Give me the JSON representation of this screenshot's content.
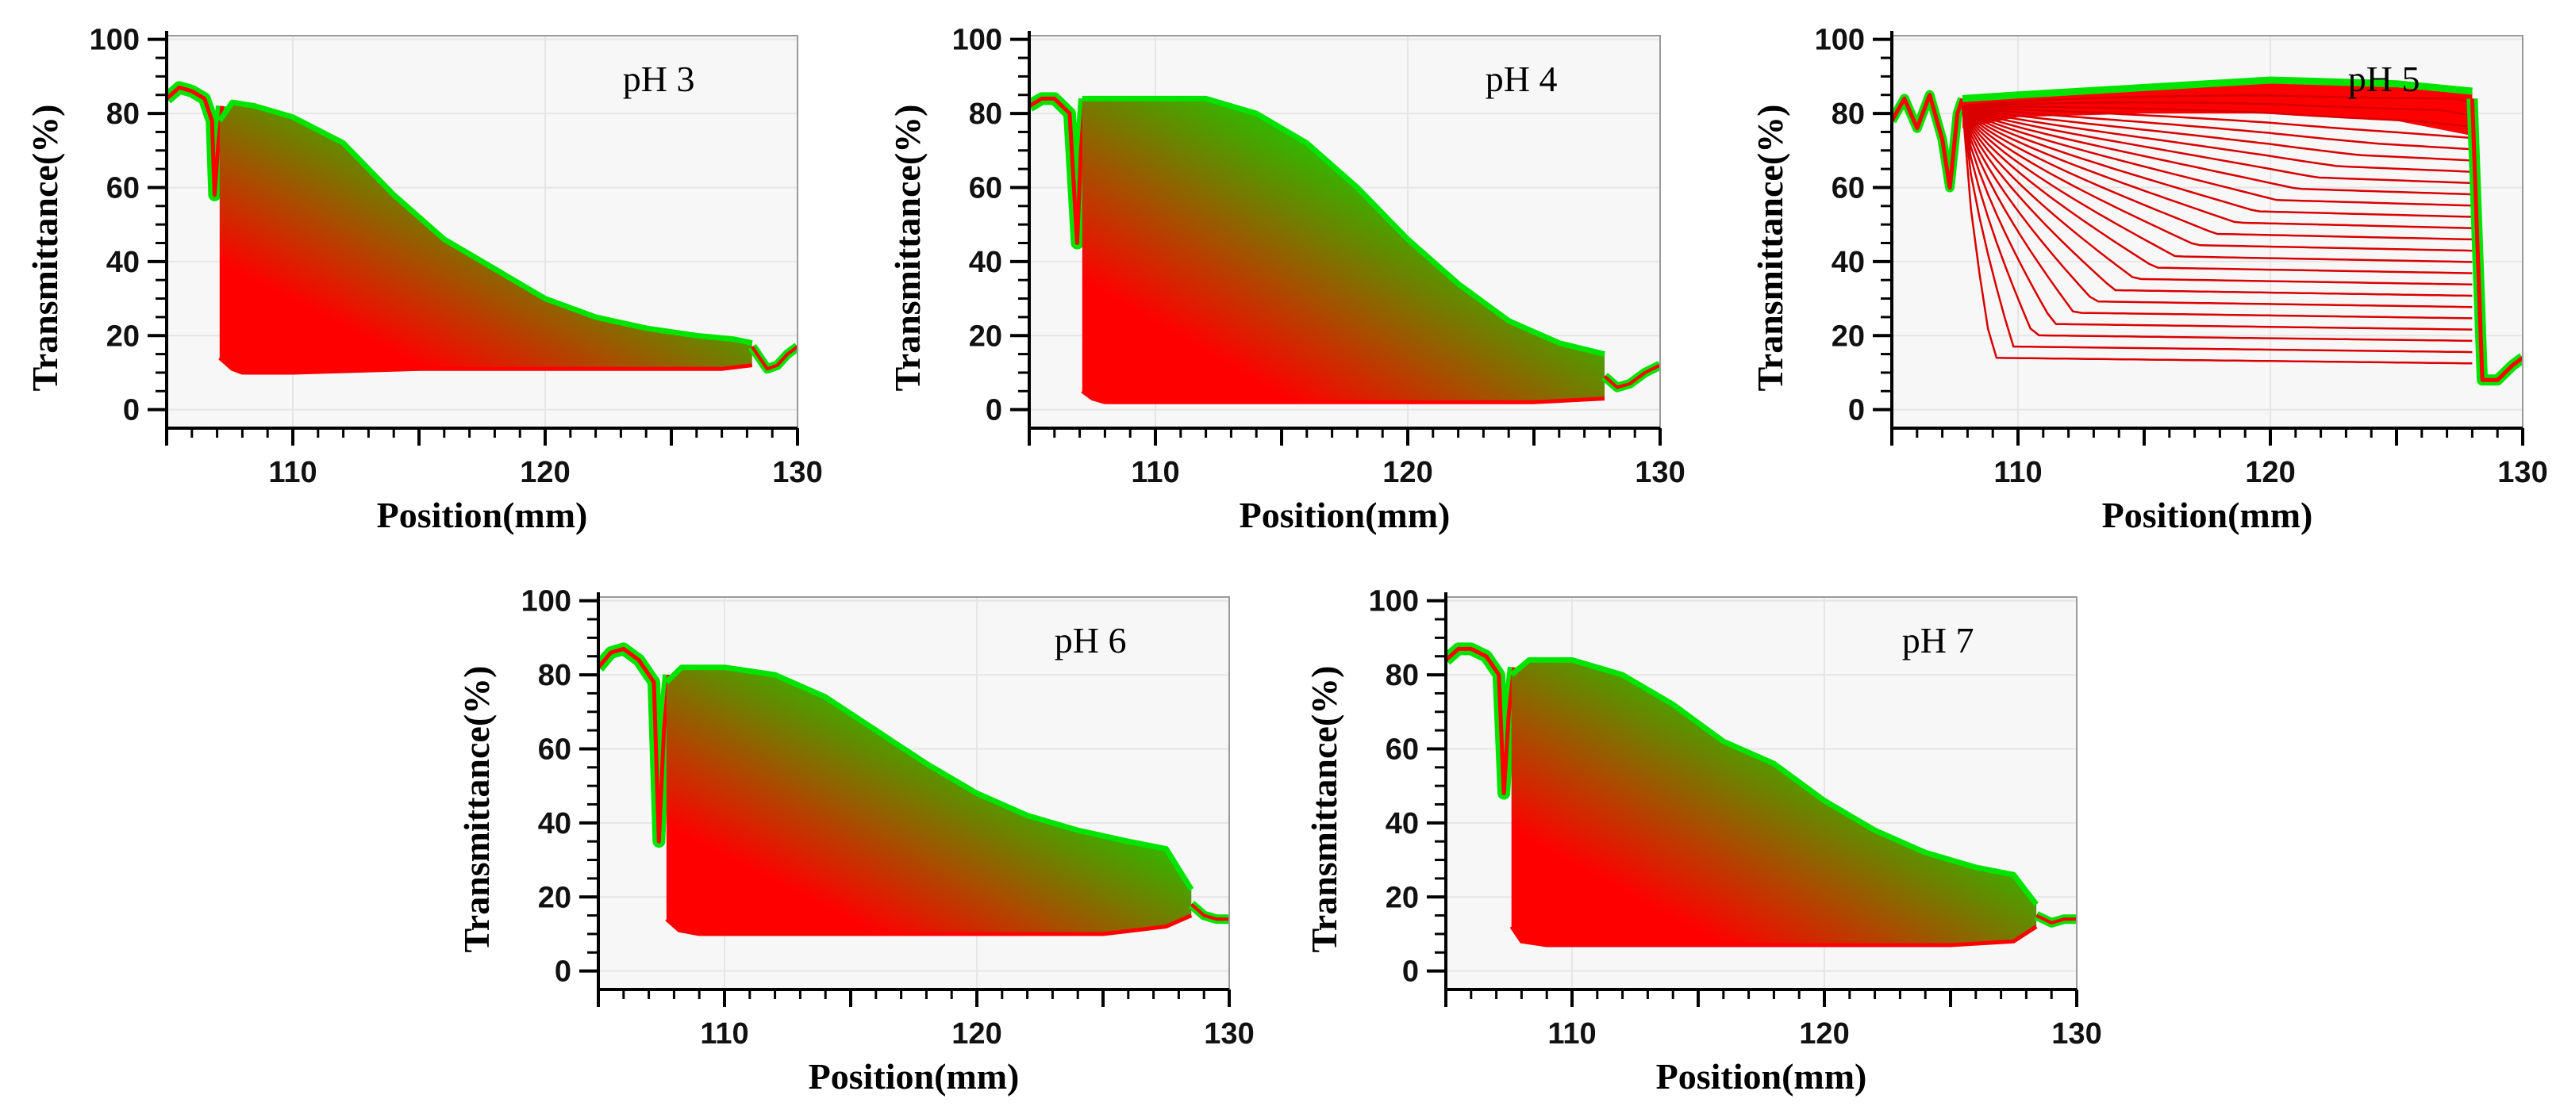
{
  "figure": {
    "background": "#ffffff"
  },
  "colors": {
    "early_profile": "#ff0000",
    "late_profile": "#00e400",
    "plot_background": "#f7f7f7",
    "gridline": "#e6e6e6",
    "axis": "#000000"
  },
  "chart_data": [
    {
      "type": "line",
      "label": "pH 3",
      "style": "filled-profiles",
      "xlabel": "Position(mm)",
      "ylabel": "Transmittance(%)",
      "xlim": [
        105,
        130
      ],
      "ylim": [
        -5,
        101
      ],
      "xticks": [
        110,
        120,
        130
      ],
      "xtick_labels": [
        "110",
        "120",
        "130"
      ],
      "yticks": [
        0,
        20,
        40,
        60,
        80,
        100
      ],
      "ytick_labels": [
        "0",
        "20",
        "40",
        "60",
        "80",
        "100"
      ],
      "meniscus": {
        "x": [
          105,
          105.5,
          106,
          106.5,
          106.8,
          106.9,
          107.05,
          107.2
        ],
        "y": [
          84,
          87,
          86,
          84,
          78,
          58,
          72,
          82
        ]
      },
      "lower_envelope": {
        "x": [
          107.1,
          107.6,
          108,
          110,
          115,
          120,
          125,
          127,
          128.2
        ],
        "y": [
          14,
          11,
          10,
          10,
          11,
          11,
          11,
          11,
          12
        ]
      },
      "upper_envelope": {
        "x": [
          107.1,
          107.6,
          108.5,
          110,
          112,
          114,
          116,
          118,
          120,
          122,
          124,
          126,
          127.5,
          128.2
        ],
        "y": [
          78,
          83,
          82,
          79,
          72,
          58,
          46,
          38,
          30,
          25,
          22,
          20,
          19,
          18
        ]
      },
      "tail": {
        "x": [
          128.2,
          128.5,
          128.8,
          129.2,
          129.6,
          130
        ],
        "y": [
          17,
          14,
          11,
          12,
          15,
          17
        ]
      }
    },
    {
      "type": "line",
      "label": "pH 4",
      "style": "filled-profiles",
      "xlabel": "Position(mm)",
      "ylabel": "Transmittance(%)",
      "xlim": [
        105,
        130
      ],
      "ylim": [
        -5,
        101
      ],
      "xticks": [
        110,
        120,
        130
      ],
      "xtick_labels": [
        "110",
        "120",
        "130"
      ],
      "yticks": [
        0,
        20,
        40,
        60,
        80,
        100
      ],
      "ytick_labels": [
        "0",
        "20",
        "40",
        "60",
        "80",
        "100"
      ],
      "meniscus": {
        "x": [
          105,
          105.5,
          106,
          106.6,
          106.9,
          107.05,
          107.2
        ],
        "y": [
          82,
          84,
          84,
          80,
          45,
          70,
          84
        ]
      },
      "lower_envelope": {
        "x": [
          107.1,
          107.5,
          108,
          110,
          115,
          120,
          125,
          127.8
        ],
        "y": [
          5,
          3,
          2,
          2,
          2,
          2,
          2,
          3
        ]
      },
      "upper_envelope": {
        "x": [
          107.1,
          107.8,
          110,
          112,
          114,
          116,
          118,
          120,
          122,
          124,
          126,
          127.8
        ],
        "y": [
          84,
          84,
          84,
          84,
          80,
          72,
          60,
          46,
          34,
          24,
          18,
          15
        ]
      },
      "tail": {
        "x": [
          127.8,
          128.3,
          128.8,
          129.4,
          130
        ],
        "y": [
          9,
          6,
          7,
          10,
          12
        ]
      }
    },
    {
      "type": "line",
      "label": "pH 5",
      "style": "line-profiles",
      "xlabel": "Position(mm)",
      "ylabel": "Transmittance(%)",
      "xlim": [
        105,
        130
      ],
      "ylim": [
        -5,
        101
      ],
      "xticks": [
        110,
        120,
        130
      ],
      "xtick_labels": [
        "110",
        "120",
        "130"
      ],
      "yticks": [
        0,
        20,
        40,
        60,
        80,
        100
      ],
      "ytick_labels": [
        "0",
        "20",
        "40",
        "60",
        "80",
        "100"
      ],
      "meniscus": {
        "x": [
          105,
          105.5,
          106,
          106.5,
          107,
          107.3,
          107.6,
          107.8
        ],
        "y": [
          78,
          84,
          76,
          85,
          73,
          60,
          80,
          84
        ]
      },
      "profiles": {
        "count": 24,
        "x_start": 107.8,
        "x_end": 128.0,
        "plateau_first": 14,
        "plateau_last": 84,
        "edge_first": 109.0,
        "edge_last": 127.5
      },
      "band": {
        "x": [
          107.8,
          110,
          115,
          120,
          125,
          128
        ],
        "top": [
          84,
          85,
          87,
          89,
          88,
          86
        ],
        "bottom": [
          76,
          79,
          80,
          80,
          78,
          74
        ]
      },
      "drop": {
        "x": [
          128.0,
          128.4,
          129,
          129.6,
          130
        ],
        "y": [
          84,
          8,
          8,
          12,
          14
        ]
      }
    },
    {
      "type": "line",
      "label": "pH 6",
      "style": "filled-profiles",
      "xlabel": "Position(mm)",
      "ylabel": "Transmittance(%)",
      "xlim": [
        105,
        130
      ],
      "ylim": [
        -5,
        101
      ],
      "xticks": [
        110,
        120,
        130
      ],
      "xtick_labels": [
        "110",
        "120",
        "130"
      ],
      "yticks": [
        0,
        20,
        40,
        60,
        80,
        100
      ],
      "ytick_labels": [
        "0",
        "20",
        "40",
        "60",
        "80",
        "100"
      ],
      "meniscus": {
        "x": [
          105,
          105.5,
          106,
          106.6,
          107.2,
          107.4,
          107.6,
          107.8
        ],
        "y": [
          82,
          86,
          87,
          84,
          78,
          35,
          65,
          80
        ]
      },
      "lower_envelope": {
        "x": [
          107.7,
          108.2,
          109,
          110,
          115,
          120,
          125,
          127.5,
          128.5
        ],
        "y": [
          14,
          11,
          10,
          10,
          10,
          10,
          10,
          12,
          15
        ]
      },
      "upper_envelope": {
        "x": [
          107.7,
          108.3,
          110,
          112,
          114,
          116,
          118,
          120,
          122,
          124,
          126,
          127.5,
          128.5
        ],
        "y": [
          78,
          82,
          82,
          80,
          74,
          65,
          56,
          48,
          42,
          38,
          35,
          33,
          22
        ]
      },
      "tail": {
        "x": [
          128.5,
          129,
          129.5,
          130
        ],
        "y": [
          18,
          15,
          14,
          14
        ]
      }
    },
    {
      "type": "line",
      "label": "pH 7",
      "style": "filled-profiles",
      "xlabel": "Position(mm)",
      "ylabel": "Transmittance(%)",
      "xlim": [
        105,
        130
      ],
      "ylim": [
        -5,
        101
      ],
      "xticks": [
        110,
        120,
        130
      ],
      "xtick_labels": [
        "110",
        "120",
        "130"
      ],
      "yticks": [
        0,
        20,
        40,
        60,
        80,
        100
      ],
      "ytick_labels": [
        "0",
        "20",
        "40",
        "60",
        "80",
        "100"
      ],
      "meniscus": {
        "x": [
          105,
          105.5,
          106,
          106.6,
          107.1,
          107.3,
          107.5,
          107.7
        ],
        "y": [
          84,
          87,
          87,
          85,
          80,
          48,
          70,
          82
        ]
      },
      "lower_envelope": {
        "x": [
          107.6,
          108,
          109,
          110,
          115,
          120,
          125,
          127.5,
          128.4
        ],
        "y": [
          12,
          8,
          7,
          7,
          7,
          7,
          7,
          8,
          12
        ]
      },
      "upper_envelope": {
        "x": [
          107.6,
          108.3,
          110,
          112,
          114,
          116,
          118,
          120,
          122,
          124,
          126,
          127.5,
          128.4
        ],
        "y": [
          80,
          84,
          84,
          80,
          72,
          62,
          56,
          46,
          38,
          32,
          28,
          26,
          18
        ]
      },
      "tail": {
        "x": [
          128.4,
          129,
          129.5,
          130
        ],
        "y": [
          15,
          13,
          14,
          14
        ]
      }
    }
  ]
}
